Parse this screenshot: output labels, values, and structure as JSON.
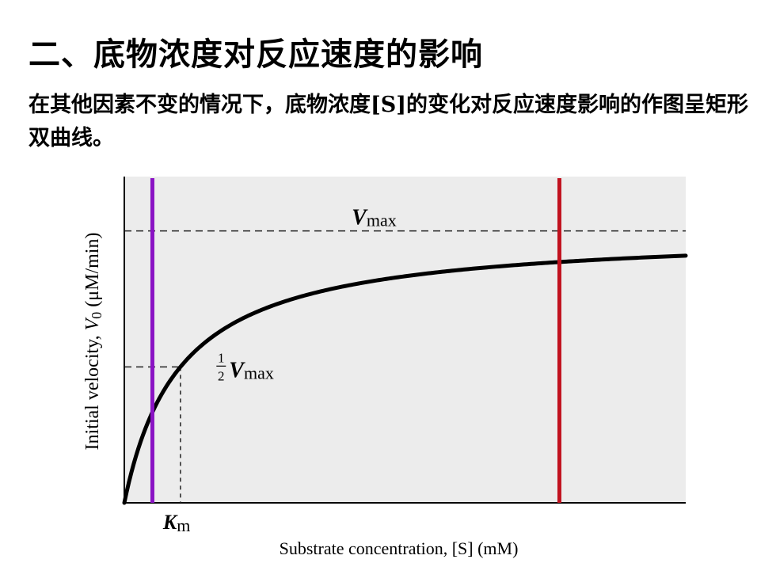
{
  "slide": {
    "title": "二、底物浓度对反应速度的影响",
    "text": "在其他因素不变的情况下，底物浓度[S]的变化对反应速度影响的作图呈矩形双曲线。"
  },
  "colors": {
    "plot_background": "#ececec",
    "curve": "#000000",
    "purple_line": "#8a12c4",
    "red_line": "#c1121f"
  },
  "chart_data": {
    "type": "line",
    "title": "",
    "xlabel": "Substrate concentration, [S] (mM)",
    "ylabel": "Initial velocity, V0 (μM/min)",
    "xlim": [
      0,
      20
    ],
    "ylim": [
      0,
      1.2
    ],
    "grid": false,
    "model": "V0 = Vmax·[S]/(Km + [S])",
    "Vmax": 1.0,
    "Km": 2.0,
    "series": [
      {
        "x": [
          0,
          0.25,
          0.5,
          1,
          1.5,
          2,
          3,
          4,
          5,
          6,
          8,
          10,
          12,
          14,
          16,
          18,
          20
        ],
        "values": [
          0,
          0.111,
          0.2,
          0.333,
          0.429,
          0.5,
          0.6,
          0.667,
          0.714,
          0.75,
          0.8,
          0.833,
          0.857,
          0.875,
          0.889,
          0.9,
          0.909
        ]
      }
    ],
    "reference_lines": [
      {
        "type": "horizontal",
        "y": 1.0,
        "label": "Vmax",
        "style": "dashed"
      },
      {
        "type": "horizontal",
        "y": 0.5,
        "label": "½ Vmax",
        "style": "dashed"
      },
      {
        "type": "vertical",
        "x": 2.0,
        "label": "Km",
        "style": "dashed"
      },
      {
        "type": "vertical",
        "x": 1.0,
        "style": "solid",
        "color": "purple"
      },
      {
        "type": "vertical",
        "x": 15.5,
        "style": "solid",
        "color": "red"
      }
    ],
    "annotations": {
      "vmax_V": "V",
      "vmax_sub": "max",
      "half_num": "1",
      "half_den": "2",
      "km_K": "K",
      "km_sub": "m",
      "ylabel_main": "Initial velocity, ",
      "ylabel_V": "V",
      "ylabel_sub": "0",
      "ylabel_units": " (μM/min)"
    }
  }
}
